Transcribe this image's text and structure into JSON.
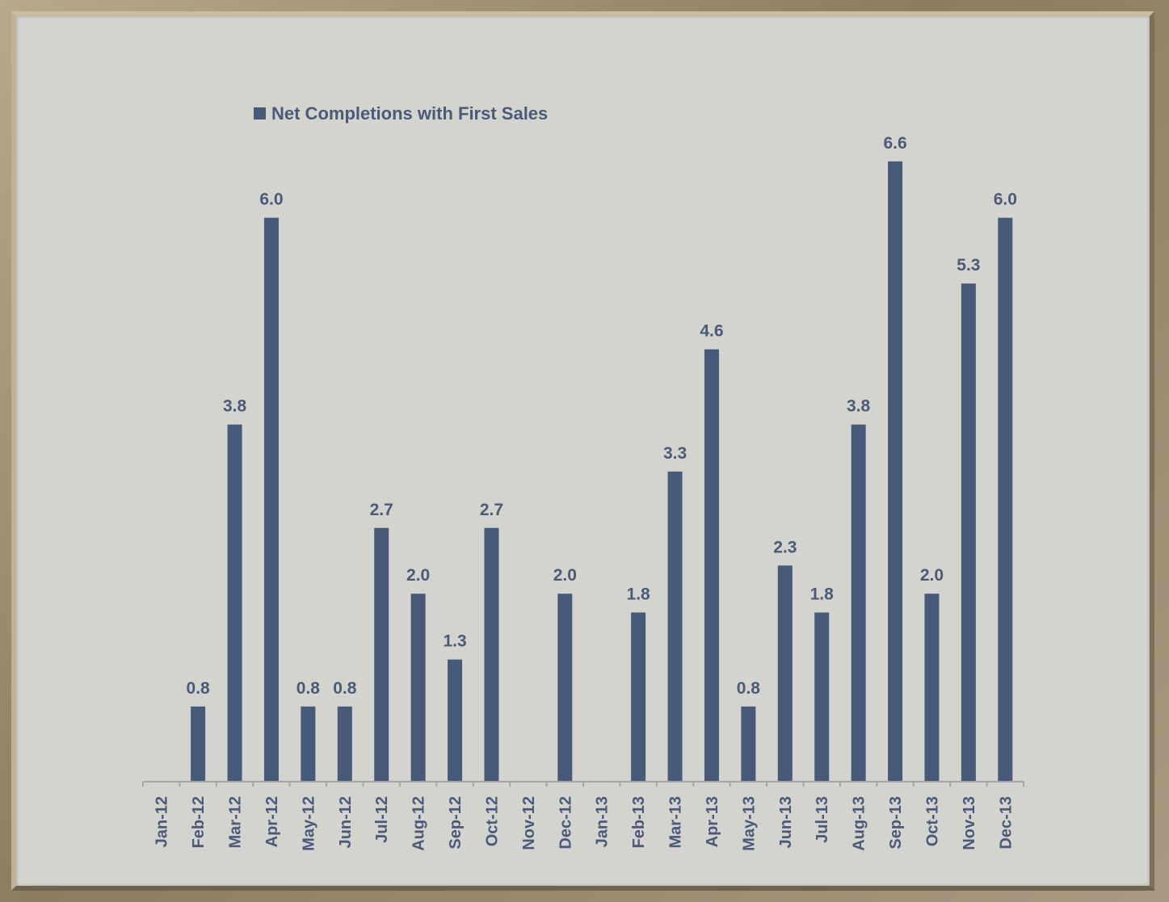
{
  "chart_data": {
    "type": "bar",
    "categories": [
      "Jan-12",
      "Feb-12",
      "Mar-12",
      "Apr-12",
      "May-12",
      "Jun-12",
      "Jul-12",
      "Aug-12",
      "Sep-12",
      "Oct-12",
      "Nov-12",
      "Dec-12",
      "Jan-13",
      "Feb-13",
      "Mar-13",
      "Apr-13",
      "May-13",
      "Jun-13",
      "Jul-13",
      "Aug-13",
      "Sep-13",
      "Oct-13",
      "Nov-13",
      "Dec-13"
    ],
    "series": [
      {
        "name": "Net Completions with First Sales",
        "values": [
          0,
          0.8,
          3.8,
          6.0,
          0.8,
          0.8,
          2.7,
          2.0,
          1.3,
          2.7,
          0,
          2.0,
          0,
          1.8,
          3.3,
          4.6,
          0.8,
          2.3,
          1.8,
          3.8,
          6.6,
          2.0,
          5.3,
          6.0
        ],
        "labels": [
          "",
          "0.8",
          "3.8",
          "6.0",
          "0.8",
          "0.8",
          "2.7",
          "2.0",
          "1.3",
          "2.7",
          "",
          "2.0",
          "",
          "1.8",
          "3.3",
          "4.6",
          "0.8",
          "2.3",
          "1.8",
          "3.8",
          "6.6",
          "2.0",
          "5.3",
          "6.0"
        ],
        "color": "#475a7a"
      }
    ],
    "title": "",
    "xlabel": "",
    "ylabel": "",
    "ylim": [
      0,
      7.2
    ],
    "grid": false,
    "legend": "top-left"
  }
}
